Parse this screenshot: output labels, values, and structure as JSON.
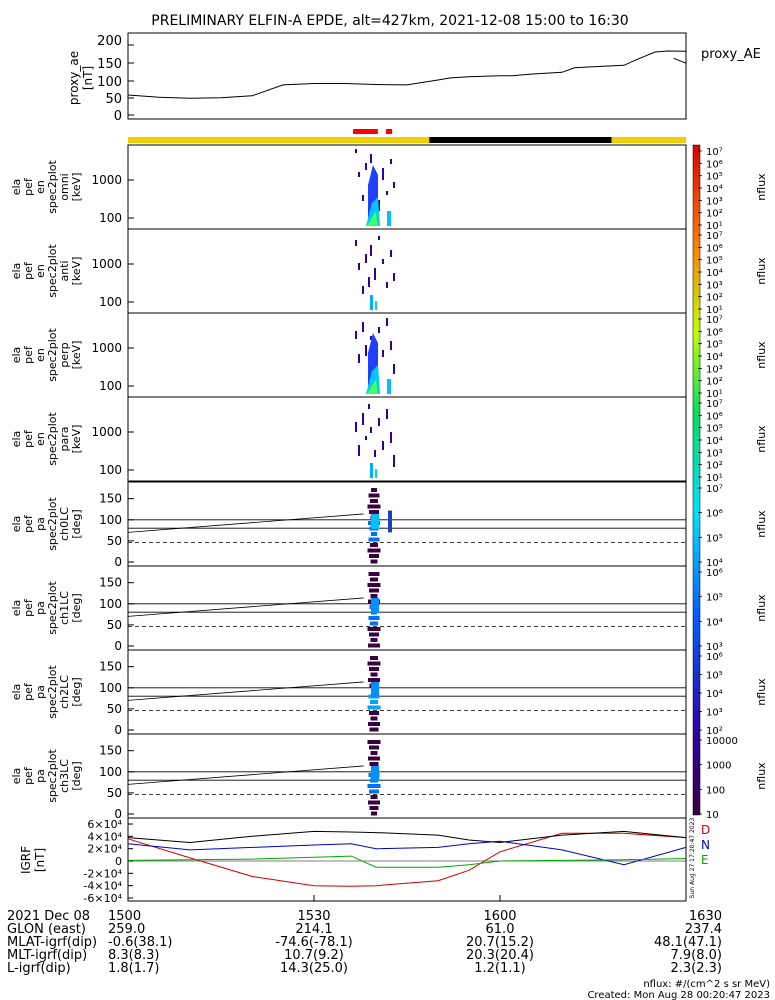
{
  "title": "PRELIMINARY ELFIN-A EPDE, alt=427km, 2021-12-08 15:00 to 16:30",
  "proxy_panel": {
    "ylabel_lines": [
      "proxy_ae",
      "[nT]"
    ],
    "legend": "proxy_AE",
    "ylim": [
      0,
      200
    ],
    "yticks": [
      "0",
      "50",
      "100",
      "150",
      "200"
    ]
  },
  "colors": {
    "sunlit_bar": "#f0d000",
    "shadow_bar": "#000000",
    "science_bar": "#ff0000",
    "component_D": "#cc0000",
    "component_N": "#0000cc",
    "component_E": "#00aa00",
    "component_total": "#000000"
  },
  "energy_panels": [
    {
      "ylabel_lines": [
        "ela",
        "pef",
        "en",
        "spec2plot",
        "omni",
        "[keV]"
      ],
      "yticks": [
        "100",
        "1000"
      ],
      "cbar_label": "nflux"
    },
    {
      "ylabel_lines": [
        "ela",
        "pef",
        "en",
        "spec2plot",
        "anti",
        "[keV]"
      ],
      "yticks": [
        "100",
        "1000"
      ],
      "cbar_label": "nflux"
    },
    {
      "ylabel_lines": [
        "ela",
        "pef",
        "en",
        "spec2plot",
        "perp",
        "[keV]"
      ],
      "yticks": [
        "100",
        "1000"
      ],
      "cbar_label": "nflux"
    },
    {
      "ylabel_lines": [
        "ela",
        "pef",
        "en",
        "spec2plot",
        "para",
        "[keV]"
      ],
      "yticks": [
        "100",
        "1000"
      ],
      "cbar_label": "nflux"
    }
  ],
  "pa_panels": [
    {
      "ylabel_lines": [
        "ela",
        "pef",
        "pa",
        "spec2plot",
        "ch0LC",
        "[deg]"
      ],
      "yticks": [
        "0",
        "50",
        "100",
        "150"
      ],
      "cbar_label": "nflux"
    },
    {
      "ylabel_lines": [
        "ela",
        "pef",
        "pa",
        "spec2plot",
        "ch1LC",
        "[deg]"
      ],
      "yticks": [
        "0",
        "50",
        "100",
        "150"
      ],
      "cbar_label": "nflux"
    },
    {
      "ylabel_lines": [
        "ela",
        "pef",
        "pa",
        "spec2plot",
        "ch2LC",
        "[deg]"
      ],
      "yticks": [
        "0",
        "50",
        "100",
        "150"
      ],
      "cbar_label": "nflux"
    },
    {
      "ylabel_lines": [
        "ela",
        "pef",
        "pa",
        "spec2plot",
        "ch3LC",
        "[deg]"
      ],
      "yticks": [
        "0",
        "50",
        "100",
        "150"
      ],
      "cbar_label": "nflux"
    }
  ],
  "igrf_panel": {
    "ylabel_lines": [
      "IGRF",
      "[nT]"
    ],
    "yticks": [
      "-6×10⁴",
      "-4×10⁴",
      "-2×10⁴",
      "0",
      "2×10⁴",
      "4×10⁴",
      "6×10⁴"
    ],
    "legend": [
      "D",
      "N",
      "E"
    ],
    "side_stamp": "Sun Aug 27 17:20:47 2023"
  },
  "colorbars": [
    {
      "ticks": [
        "10⁷",
        "10⁶",
        "10⁵",
        "10⁴",
        "10³",
        "10²",
        "10¹"
      ],
      "label": "nflux"
    },
    {
      "ticks": [
        "10⁷",
        "10⁶",
        "10⁵",
        "10⁴",
        "10³",
        "10²",
        "10¹"
      ],
      "label": "nflux"
    },
    {
      "ticks": [
        "10⁷",
        "10⁶",
        "10⁵",
        "10⁴",
        "10³",
        "10²",
        "10¹"
      ],
      "label": "nflux"
    },
    {
      "ticks": [
        "10⁷",
        "10⁶",
        "10⁵",
        "10⁴",
        "10³",
        "10²",
        "10¹"
      ],
      "label": "nflux"
    },
    {
      "ticks": [
        "10⁷",
        "10⁶",
        "10⁵",
        "10⁴"
      ],
      "label": "nflux"
    },
    {
      "ticks": [
        "10⁶",
        "10⁵",
        "10⁴",
        "10³"
      ],
      "label": "nflux"
    },
    {
      "ticks": [
        "10⁶",
        "10⁵",
        "10⁴",
        "10³",
        "10²"
      ],
      "label": "nflux"
    },
    {
      "ticks": [
        "10000",
        "1000",
        "100",
        "10"
      ],
      "label": "nflux"
    }
  ],
  "footer": {
    "rows": [
      {
        "label": "2021 Dec 08",
        "values": [
          "1500",
          "1530",
          "1600",
          "1630"
        ]
      },
      {
        "label": "GLON (east)",
        "values": [
          "259.0",
          "214.1",
          "61.0",
          "237.4"
        ]
      },
      {
        "label": "MLAT-igrf(dip)",
        "values": [
          "-0.6(38.1)",
          "-74.6(-78.1)",
          "20.7(15.2)",
          "48.1(47.1)"
        ]
      },
      {
        "label": "MLT-igrf(dip)",
        "values": [
          "8.3(8.3)",
          "10.7(9.2)",
          "20.3(20.4)",
          "7.9(8.0)"
        ]
      },
      {
        "label": "L-igrf(dip)",
        "values": [
          "1.8(1.7)",
          "14.3(25.0)",
          "1.2(1.1)",
          "2.3(2.3)"
        ]
      }
    ],
    "units_note": "nflux: #/(cm^2 s sr MeV)",
    "created": "Created: Mon Aug 28 00:20:47 2023"
  },
  "chart_data": {
    "type": "multi-panel",
    "x_range": [
      "15:00",
      "16:30"
    ],
    "proxy_ae": {
      "x_min": [
        0,
        5,
        10,
        15,
        20,
        25,
        30,
        35,
        40,
        45,
        50,
        52,
        55,
        60,
        62,
        65,
        70,
        72,
        75,
        80,
        82,
        85,
        87,
        90
      ],
      "y_nT": [
        57,
        51,
        48,
        49,
        55,
        86,
        90,
        90,
        87,
        86,
        100,
        106,
        109,
        112,
        112,
        117,
        122,
        135,
        138,
        142,
        158,
        180,
        183,
        182
      ]
    },
    "proxy_ae_tail": {
      "x_min": [
        88,
        90
      ],
      "y_nT": [
        162,
        148
      ]
    },
    "sunlight_segments": [
      {
        "start_min": 0,
        "end_min": 48.6,
        "state": "sunlit"
      },
      {
        "start_min": 48.6,
        "end_min": 78,
        "state": "shadow"
      },
      {
        "start_min": 78,
        "end_min": 90,
        "state": "sunlit"
      }
    ],
    "science_segments": [
      {
        "start_min": 36.3,
        "end_min": 40.3
      },
      {
        "start_min": 41.6,
        "end_min": 42.6
      }
    ],
    "igrf": {
      "x_min": [
        0,
        10,
        20,
        30,
        36,
        40,
        50,
        55,
        60,
        70,
        80,
        90
      ],
      "D_nT": [
        36000,
        5000,
        -25000,
        -40000,
        -41000,
        -40000,
        -32000,
        -15000,
        15000,
        45000,
        45000,
        38000
      ],
      "N_nT": [
        28000,
        18000,
        22000,
        26000,
        28000,
        20000,
        22000,
        28000,
        32000,
        18000,
        -6000,
        22000
      ],
      "E_nT": [
        1000,
        2000,
        3000,
        6000,
        8000,
        -10000,
        -10000,
        -6000,
        0,
        1000,
        2000,
        4000
      ],
      "total_nT": [
        38000,
        30000,
        40000,
        48000,
        47000,
        46000,
        42000,
        34000,
        30000,
        42000,
        48000,
        38000
      ]
    }
  }
}
